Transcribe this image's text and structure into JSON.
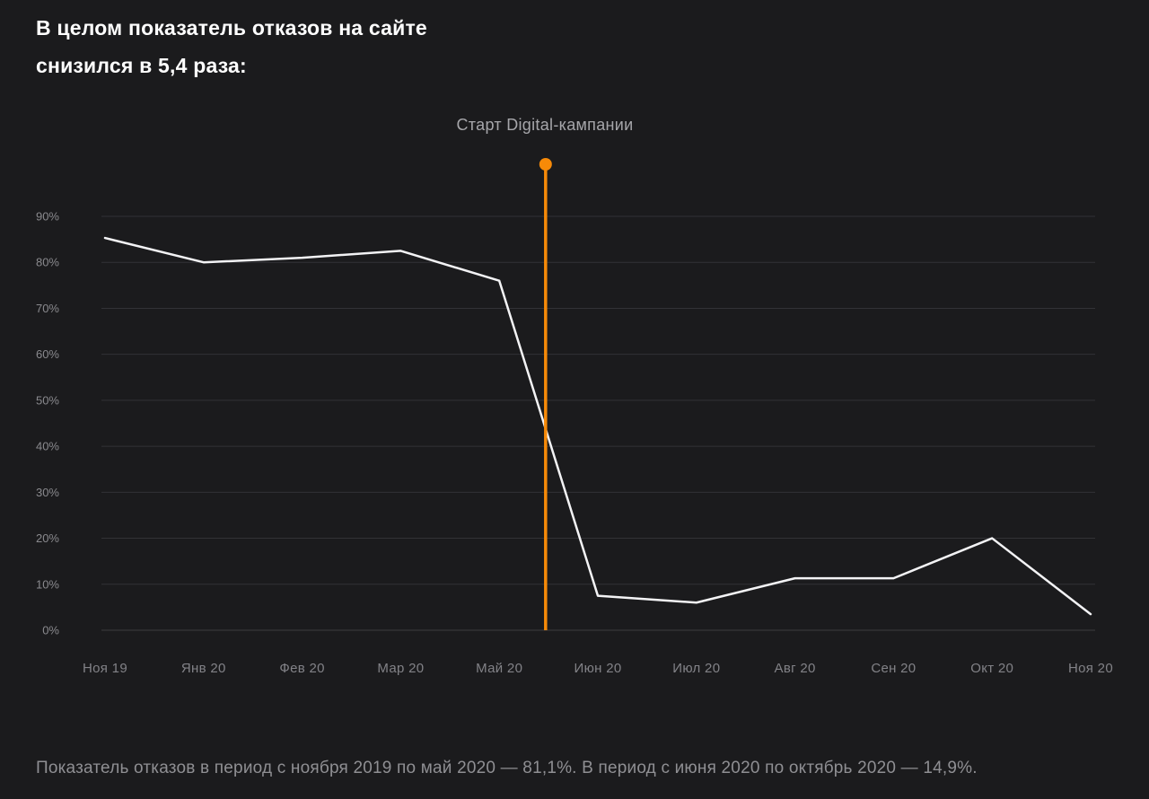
{
  "page": {
    "background_color": "#1B1B1D"
  },
  "header": {
    "title_lines": [
      "В целом показатель отказов на сайте",
      "снизился в 5,4 раза:"
    ]
  },
  "chart_data": {
    "type": "line",
    "title": "",
    "categories": [
      "Ноя 19",
      "Янв 20",
      "Фев 20",
      "Мар 20",
      "Май 20",
      "Июн 20",
      "Июл 20",
      "Авг 20",
      "Сен 20",
      "Окт 20",
      "Ноя 20"
    ],
    "series": [
      {
        "name": "Показатель отказов",
        "values": [
          85.3,
          80,
          81,
          82.5,
          76,
          7.5,
          6,
          11.3,
          11.3,
          20,
          3.5
        ],
        "color": "#F3F3F5"
      }
    ],
    "xlabel": "",
    "ylabel": "",
    "ylim": [
      0,
      90
    ],
    "ytick_step": 10,
    "ytick_suffix": "%",
    "grid": true,
    "legend": "none",
    "annotation_line": {
      "label": "Старт Digital-кампании",
      "color": "#F78A08",
      "between_category_indexes": [
        4,
        5
      ],
      "fraction_between": 0.47
    },
    "colors": {
      "gridline": "#323236",
      "baseline_gridline": "#3C3C40",
      "y_tick_label": "#8A8A8E",
      "x_tick_label": "#828287"
    }
  },
  "footer": {
    "caption": "Показатель отказов в период с ноября 2019 по май 2020 — 81,1%. В период с июня 2020 по октябрь 2020 — 14,9%."
  }
}
